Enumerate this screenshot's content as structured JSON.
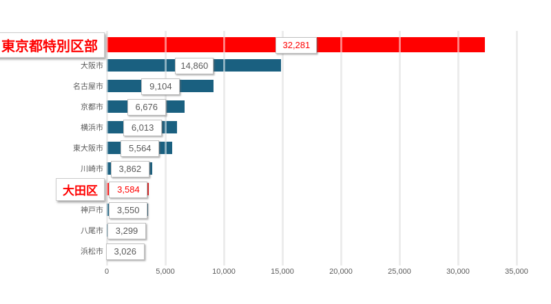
{
  "chart_data": {
    "type": "bar",
    "orientation": "horizontal",
    "categories": [
      "東京都特別区部",
      "大阪市",
      "名古屋市",
      "京都市",
      "横浜市",
      "東大阪市",
      "川崎市",
      "大田区",
      "神戸市",
      "八尾市",
      "浜松市"
    ],
    "values": [
      32281,
      14860,
      9104,
      6676,
      6013,
      5564,
      3862,
      3584,
      3550,
      3299,
      3026
    ],
    "value_labels": [
      "32,281",
      "14,860",
      "9,104",
      "6,676",
      "6,013",
      "5,564",
      "3,862",
      "3,584",
      "3,550",
      "3,299",
      "3,026"
    ],
    "highlighted_indices": [
      0,
      7
    ],
    "title": "",
    "xlabel": "",
    "ylabel": "",
    "xlim": [
      0,
      35000
    ],
    "x_ticks": [
      0,
      5000,
      10000,
      15000,
      20000,
      25000,
      30000,
      35000
    ],
    "x_tick_labels": [
      "0",
      "5,000",
      "10,000",
      "15,000",
      "20,000",
      "25,000",
      "30,000",
      "35,000"
    ],
    "grid": true,
    "legend": false,
    "colors": {
      "bar": "#1A6080",
      "bar_highlight": "#FF0000",
      "grid": "#D9D9D9",
      "tick_text": "#595959",
      "category_text": "#595959",
      "value_text": "#595959",
      "highlight_text": "#FF0000",
      "label_box_bg": "#FFFFFF",
      "label_box_border": "#C0C0C0"
    }
  }
}
